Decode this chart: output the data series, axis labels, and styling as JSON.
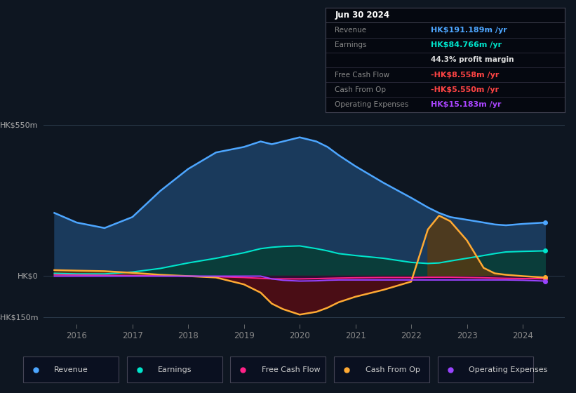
{
  "bg_color": "#0e1621",
  "chart_bg": "#0e1621",
  "title_date": "Jun 30 2024",
  "years": [
    2015.6,
    2016.0,
    2016.5,
    2017.0,
    2017.5,
    2018.0,
    2018.5,
    2019.0,
    2019.3,
    2019.5,
    2019.7,
    2020.0,
    2020.3,
    2020.5,
    2020.7,
    2021.0,
    2021.5,
    2022.0,
    2022.3,
    2022.5,
    2022.7,
    2023.0,
    2023.3,
    2023.5,
    2023.7,
    2024.0,
    2024.4
  ],
  "revenue": [
    230,
    195,
    175,
    215,
    310,
    390,
    450,
    470,
    490,
    480,
    490,
    505,
    490,
    470,
    440,
    400,
    340,
    285,
    250,
    230,
    215,
    205,
    195,
    188,
    185,
    190,
    195
  ],
  "earnings": [
    10,
    8,
    8,
    15,
    28,
    48,
    65,
    85,
    100,
    105,
    108,
    110,
    100,
    92,
    82,
    75,
    65,
    50,
    46,
    48,
    55,
    65,
    75,
    82,
    88,
    90,
    92
  ],
  "free_cash_flow": [
    5,
    4,
    3,
    2,
    1,
    0,
    -2,
    -5,
    -8,
    -10,
    -10,
    -10,
    -9,
    -8,
    -7,
    -6,
    -5,
    -5,
    -4,
    -4,
    -4,
    -5,
    -6,
    -7,
    -8,
    -9,
    -9
  ],
  "cash_from_op": [
    22,
    20,
    18,
    12,
    5,
    0,
    -5,
    -30,
    -60,
    -100,
    -120,
    -140,
    -130,
    -115,
    -95,
    -75,
    -50,
    -20,
    170,
    220,
    200,
    130,
    30,
    10,
    5,
    0,
    -5
  ],
  "operating_expenses": [
    0,
    0,
    0,
    0,
    0,
    0,
    0,
    0,
    0,
    -10,
    -15,
    -18,
    -17,
    -15,
    -14,
    -14,
    -14,
    -14,
    -14,
    -14,
    -14,
    -14,
    -14,
    -14,
    -14,
    -15,
    -18
  ],
  "ylim": [
    -175,
    590
  ],
  "ytick_vals": [
    -150,
    0,
    550
  ],
  "ytick_labels": [
    "-HK$150m",
    "HK$0",
    "HK$550m"
  ],
  "xticks": [
    2016,
    2017,
    2018,
    2019,
    2020,
    2021,
    2022,
    2023,
    2024
  ],
  "xlim_left": 2015.4,
  "xlim_right": 2024.75,
  "revenue_color": "#4da6ff",
  "revenue_fill": "#1a3a5c",
  "earnings_color": "#00e5cc",
  "earnings_fill": "#0a3d3a",
  "fcf_color": "#ff2288",
  "cfo_color": "#ffaa33",
  "cfo_fill_neg": "#5c1a0a",
  "cfo_fill_pos": "#5c3a0a",
  "opex_color": "#9944ff",
  "legend_items": [
    {
      "label": "Revenue",
      "color": "#4da6ff"
    },
    {
      "label": "Earnings",
      "color": "#00e5cc"
    },
    {
      "label": "Free Cash Flow",
      "color": "#ff2288"
    },
    {
      "label": "Cash From Op",
      "color": "#ffaa33"
    },
    {
      "label": "Operating Expenses",
      "color": "#9944ff"
    }
  ],
  "info_rows": [
    {
      "label": "Jun 30 2024",
      "value": null,
      "vcolor": null,
      "is_header": true
    },
    {
      "label": "Revenue",
      "value": "HK$191.189m /yr",
      "vcolor": "#4da6ff",
      "is_header": false
    },
    {
      "label": "Earnings",
      "value": "HK$84.766m /yr",
      "vcolor": "#00e5cc",
      "is_header": false
    },
    {
      "label": "",
      "value": "44.3% profit margin",
      "vcolor": "#dddddd",
      "is_header": false,
      "bold_prefix": "44.3%"
    },
    {
      "label": "Free Cash Flow",
      "value": "-HK$8.558m /yr",
      "vcolor": "#ff4444",
      "is_header": false
    },
    {
      "label": "Cash From Op",
      "value": "-HK$5.550m /yr",
      "vcolor": "#ff4444",
      "is_header": false
    },
    {
      "label": "Operating Expenses",
      "value": "HK$15.183m /yr",
      "vcolor": "#aa44ff",
      "is_header": false
    }
  ]
}
